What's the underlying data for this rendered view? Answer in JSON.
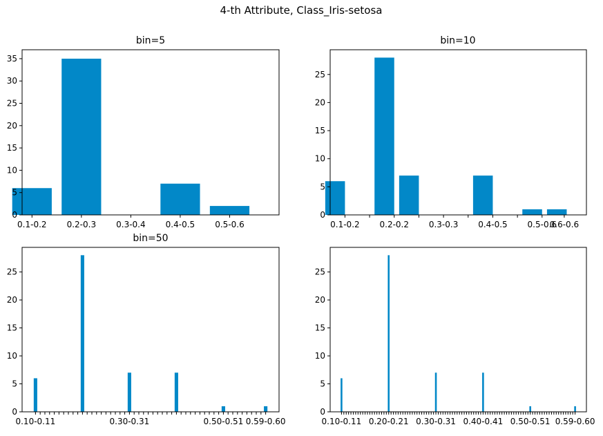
{
  "figure": {
    "title": "4-th Attribute, Class_Iris-setosa"
  },
  "colors": {
    "bar": "#0288c8",
    "axis": "#000000",
    "background": "#ffffff"
  },
  "chart_data": [
    {
      "type": "bar",
      "title": "bin=5",
      "ylim": [
        0,
        37
      ],
      "yticks": [
        0,
        5,
        10,
        15,
        20,
        25,
        30,
        35
      ],
      "xlim": [
        0.12,
        0.64
      ],
      "bar_width": 0.08,
      "x": [
        0.14,
        0.24,
        0.34,
        0.44,
        0.54
      ],
      "values": [
        6,
        35,
        0,
        7,
        2
      ],
      "tick_labels": [
        "0.1-0.2",
        "0.2-0.3",
        "0.3-0.4",
        "0.4-0.5",
        "0.5-0.6"
      ],
      "show_all_tick_labels": true
    },
    {
      "type": "bar",
      "title": "bin=10",
      "ylim": [
        0,
        29.4
      ],
      "yticks": [
        0,
        5,
        10,
        15,
        20,
        25
      ],
      "xlim": [
        0.11,
        0.63
      ],
      "bar_width": 0.04,
      "x": [
        0.12,
        0.17,
        0.22,
        0.27,
        0.32,
        0.37,
        0.42,
        0.47,
        0.52,
        0.57
      ],
      "values": [
        6,
        0,
        28,
        7,
        0,
        0,
        7,
        0,
        1,
        1
      ],
      "tick_labels": [
        "0.1-0.2",
        "0.2-0.2",
        "0.3-0.3",
        "0.4-0.5",
        "0.5-0.6",
        "0.6-0.6"
      ],
      "tick_positions": [
        0.14,
        0.24,
        0.34,
        0.44,
        0.54,
        0.585
      ],
      "minor_ticks": [
        0.19,
        0.29,
        0.39,
        0.49
      ],
      "show_all_tick_labels": true
    },
    {
      "type": "bar",
      "title": "bin=50",
      "ylim": [
        0,
        29.4
      ],
      "yticks": [
        0,
        5,
        10,
        15,
        20,
        25
      ],
      "xlim": [
        0.0765,
        0.6235
      ],
      "bar_width": 0.0075,
      "bins": 50,
      "bin_start": 0.1,
      "bin_step": 0.01,
      "values": [
        6,
        0,
        0,
        0,
        0,
        0,
        0,
        0,
        0,
        0,
        28,
        0,
        0,
        0,
        0,
        0,
        0,
        0,
        0,
        0,
        7,
        0,
        0,
        0,
        0,
        0,
        0,
        0,
        0,
        0,
        7,
        0,
        0,
        0,
        0,
        0,
        0,
        0,
        0,
        0,
        1,
        0,
        0,
        0,
        0,
        0,
        0,
        0,
        0,
        1
      ],
      "tick_labels": [
        "0.10-0.11",
        "0.30-0.31",
        "0.50-0.51",
        "0.59-0.60"
      ],
      "labeled_bins": [
        0,
        20,
        40,
        49
      ]
    },
    {
      "type": "bar",
      "title": "",
      "ylim": [
        0,
        29.4
      ],
      "yticks": [
        0,
        5,
        10,
        15,
        20,
        25
      ],
      "xlim": [
        0.0785,
        0.6215
      ],
      "bar_width": 0.0038,
      "bins": 100,
      "bin_start": 0.1,
      "bin_step": 0.005,
      "values": [
        6,
        0,
        0,
        0,
        0,
        0,
        0,
        0,
        0,
        0,
        0,
        0,
        0,
        0,
        0,
        0,
        0,
        0,
        0,
        0,
        28,
        0,
        0,
        0,
        0,
        0,
        0,
        0,
        0,
        0,
        0,
        0,
        0,
        0,
        0,
        0,
        0,
        0,
        0,
        0,
        7,
        0,
        0,
        0,
        0,
        0,
        0,
        0,
        0,
        0,
        0,
        0,
        0,
        0,
        0,
        0,
        0,
        0,
        0,
        0,
        7,
        0,
        0,
        0,
        0,
        0,
        0,
        0,
        0,
        0,
        0,
        0,
        0,
        0,
        0,
        0,
        0,
        0,
        0,
        0,
        1,
        0,
        0,
        0,
        0,
        0,
        0,
        0,
        0,
        0,
        0,
        0,
        0,
        0,
        0,
        0,
        0,
        0,
        0,
        1
      ],
      "tick_labels": [
        "0.10-0.11",
        "0.20-0.21",
        "0.30-0.31",
        "0.40-0.41",
        "0.50-0.51",
        "0.59-0.60"
      ],
      "labeled_bins": [
        0,
        20,
        40,
        60,
        80,
        99
      ]
    }
  ]
}
